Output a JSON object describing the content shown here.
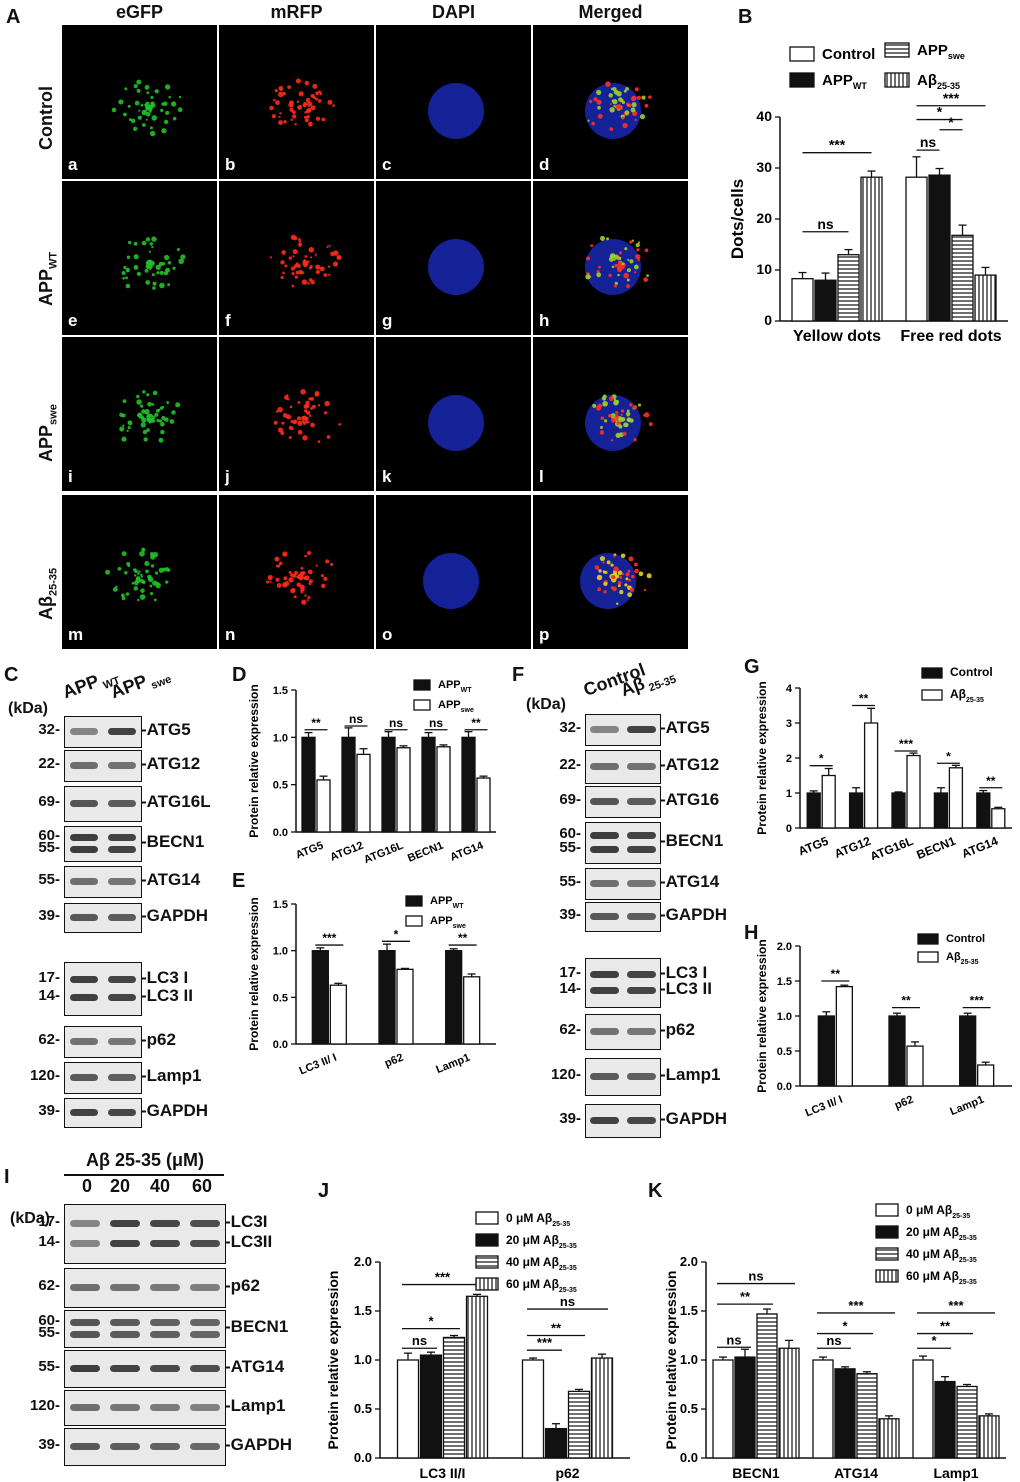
{
  "panel_letters": {
    "A": "A",
    "B": "B",
    "C": "C",
    "D": "D",
    "E": "E",
    "F": "F",
    "G": "G",
    "H": "H",
    "I": "I",
    "J": "J",
    "K": "K"
  },
  "micro": {
    "columns": [
      "eGFP",
      "mRFP",
      "DAPI",
      "Merged"
    ],
    "rows": [
      {
        "label": "Control",
        "sub": "",
        "cells": [
          "a",
          "b",
          "c",
          "d"
        ]
      },
      {
        "label": "APP",
        "sub": "WT",
        "cells": [
          "e",
          "f",
          "g",
          "h"
        ]
      },
      {
        "label": "APP",
        "sub": "swe",
        "cells": [
          "i",
          "j",
          "k",
          "l"
        ]
      },
      {
        "label": "Aβ",
        "sub": "25-35",
        "cells": [
          "m",
          "n",
          "o",
          "p"
        ]
      }
    ]
  },
  "blot_C": {
    "kda_label": "(kDa)",
    "lanes": [
      {
        "t": "APP",
        "s": "WT"
      },
      {
        "t": "APP",
        "s": "swe"
      }
    ],
    "rows": [
      {
        "kda": "32-",
        "label": "-ATG5"
      },
      {
        "kda": "22-",
        "label": "-ATG12"
      },
      {
        "kda": "69-",
        "label": "-ATG16L"
      },
      {
        "kda": "60-\n55-",
        "label": "-BECN1"
      },
      {
        "kda": "55-",
        "label": "-ATG14"
      },
      {
        "kda": "39-",
        "label": "-GAPDH"
      },
      {
        "kda": "17-\n14-",
        "label": "-LC3 I\n-LC3 II"
      },
      {
        "kda": "62-",
        "label": "-p62"
      },
      {
        "kda": "120-",
        "label": "-Lamp1"
      },
      {
        "kda": "39-",
        "label": "-GAPDH"
      }
    ]
  },
  "blot_F": {
    "kda_label": "(kDa)",
    "lanes": [
      {
        "t": "Control",
        "s": ""
      },
      {
        "t": "Aβ",
        "s": "25-35"
      }
    ],
    "rows": [
      {
        "kda": "32-",
        "label": "-ATG5"
      },
      {
        "kda": "22-",
        "label": "-ATG12"
      },
      {
        "kda": "69-",
        "label": "-ATG16"
      },
      {
        "kda": "60-\n55-",
        "label": "-BECN1"
      },
      {
        "kda": "55-",
        "label": "-ATG14"
      },
      {
        "kda": "39-",
        "label": "-GAPDH"
      },
      {
        "kda": "17-\n14-",
        "label": "-LC3 I\n-LC3 II"
      },
      {
        "kda": "62-",
        "label": "-p62"
      },
      {
        "kda": "120-",
        "label": "-Lamp1"
      },
      {
        "kda": "39-",
        "label": "-GAPDH"
      }
    ]
  },
  "blot_I": {
    "kda_label": "(kDa)",
    "title": "Aβ 25-35 (μM)",
    "lanes": [
      "0",
      "20",
      "40",
      "60"
    ],
    "rows": [
      {
        "kda": "17-\n14-",
        "label": "-LC3I\n-LC3II"
      },
      {
        "kda": "62-",
        "label": "-p62"
      },
      {
        "kda": "60-\n55-",
        "label": "-BECN1"
      },
      {
        "kda": "55-",
        "label": "-ATG14"
      },
      {
        "kda": "120-",
        "label": "-Lamp1"
      },
      {
        "kda": "39-",
        "label": "-GAPDH"
      }
    ]
  },
  "chart_data": [
    {
      "id": "B",
      "type": "bar",
      "ylabel": "Dots/cells",
      "ylim": [
        0,
        40
      ],
      "yticks": [
        0,
        10,
        20,
        30,
        40
      ],
      "categories": [
        "Yellow dots",
        "Free red dots"
      ],
      "series": [
        {
          "name": "Control",
          "values": [
            8.3,
            28.2
          ],
          "err": [
            1.2,
            4.0
          ],
          "fill": "white"
        },
        {
          "name": "APP",
          "sub": "WT",
          "values": [
            8.0,
            28.6
          ],
          "err": [
            1.4,
            1.3
          ],
          "fill": "black"
        },
        {
          "name": "APP",
          "sub": "swe",
          "values": [
            13.0,
            16.8
          ],
          "err": [
            1.0,
            2.0
          ],
          "fill": "hstripe"
        },
        {
          "name": "Aβ",
          "sub": "25-35",
          "values": [
            28.2,
            9.0
          ],
          "err": [
            1.2,
            1.5
          ],
          "fill": "vstripe"
        }
      ],
      "sig": [
        "***",
        "ns",
        "ns",
        "*",
        "*",
        "***"
      ]
    },
    {
      "id": "D",
      "type": "bar",
      "ylabel": "Protein relative expression",
      "ylim": [
        0,
        1.5
      ],
      "yticks": [
        0.0,
        0.5,
        1.0,
        1.5
      ],
      "categories": [
        "ATG5",
        "ATG12",
        "ATG16L",
        "BECN1",
        "ATG14"
      ],
      "series": [
        {
          "name": "APP",
          "sub": "WT",
          "values": [
            1.0,
            1.0,
            1.0,
            1.0,
            1.0
          ],
          "err": [
            0.05,
            0.1,
            0.06,
            0.05,
            0.06
          ],
          "fill": "black"
        },
        {
          "name": "APP",
          "sub": "swe",
          "values": [
            0.55,
            0.82,
            0.89,
            0.9,
            0.57
          ],
          "err": [
            0.04,
            0.06,
            0.02,
            0.02,
            0.02
          ],
          "fill": "white"
        }
      ],
      "sig": [
        "**",
        "ns",
        "ns",
        "ns",
        "**"
      ]
    },
    {
      "id": "E",
      "type": "bar",
      "ylabel": "Protein relative expression",
      "ylim": [
        0,
        1.5
      ],
      "yticks": [
        0.0,
        0.5,
        1.0,
        1.5
      ],
      "categories": [
        "LC3 II/ I",
        "p62",
        "Lamp1"
      ],
      "series": [
        {
          "name": "APP",
          "sub": "WT",
          "values": [
            1.0,
            1.0,
            1.0
          ],
          "err": [
            0.03,
            0.07,
            0.02
          ],
          "fill": "black"
        },
        {
          "name": "APP",
          "sub": "swe",
          "values": [
            0.63,
            0.8,
            0.72
          ],
          "err": [
            0.02,
            0.01,
            0.03
          ],
          "fill": "white"
        }
      ],
      "sig": [
        "***",
        "*",
        "**"
      ]
    },
    {
      "id": "G",
      "type": "bar",
      "ylabel": "Protein relative expression",
      "ylim": [
        0,
        4
      ],
      "yticks": [
        0,
        1,
        2,
        3,
        4
      ],
      "categories": [
        "ATG5",
        "ATG12",
        "ATG16L",
        "BECN1",
        "ATG14"
      ],
      "series": [
        {
          "name": "Control",
          "values": [
            1.0,
            1.0,
            1.0,
            1.0,
            1.0
          ],
          "err": [
            0.06,
            0.15,
            0.03,
            0.15,
            0.07
          ],
          "fill": "black"
        },
        {
          "name": "Aβ",
          "sub": "25-35",
          "values": [
            1.5,
            3.0,
            2.07,
            1.72,
            0.55
          ],
          "err": [
            0.2,
            0.42,
            0.07,
            0.07,
            0.04
          ],
          "fill": "white"
        }
      ],
      "sig": [
        "*",
        "**",
        "***",
        "*",
        "**"
      ]
    },
    {
      "id": "H",
      "type": "bar",
      "ylabel": "Protein relative expression",
      "ylim": [
        0,
        2.0
      ],
      "yticks": [
        0.0,
        0.5,
        1.0,
        1.5,
        2.0
      ],
      "categories": [
        "LC3 II/ I",
        "p62",
        "Lamp1"
      ],
      "series": [
        {
          "name": "Control",
          "values": [
            1.0,
            1.0,
            1.0
          ],
          "err": [
            0.06,
            0.04,
            0.04
          ],
          "fill": "black"
        },
        {
          "name": "Aβ",
          "sub": "25-35",
          "values": [
            1.42,
            0.57,
            0.3
          ],
          "err": [
            0.02,
            0.06,
            0.04
          ],
          "fill": "white"
        }
      ],
      "sig": [
        "**",
        "**",
        "***"
      ]
    },
    {
      "id": "J",
      "type": "bar",
      "ylabel": "Protein relative expression",
      "ylim": [
        0,
        2.0
      ],
      "yticks": [
        0.0,
        0.5,
        1.0,
        1.5,
        2.0
      ],
      "categories": [
        "LC3 II/I",
        "p62"
      ],
      "series": [
        {
          "name": "0 μM Aβ",
          "sub": "25-35",
          "values": [
            1.0,
            1.0
          ],
          "err": [
            0.07,
            0.02
          ],
          "fill": "white"
        },
        {
          "name": "20 μM Aβ",
          "sub": "25-35",
          "values": [
            1.05,
            0.3
          ],
          "err": [
            0.03,
            0.05
          ],
          "fill": "black"
        },
        {
          "name": "40 μM Aβ",
          "sub": "25-35",
          "values": [
            1.23,
            0.68
          ],
          "err": [
            0.02,
            0.02
          ],
          "fill": "hstripe"
        },
        {
          "name": "60 μM Aβ",
          "sub": "25-35",
          "values": [
            1.65,
            1.02
          ],
          "err": [
            0.02,
            0.04
          ],
          "fill": "vstripe"
        }
      ],
      "sig": [
        "ns",
        "*",
        "***",
        "***",
        "**",
        "ns"
      ]
    },
    {
      "id": "K",
      "type": "bar",
      "ylabel": "Protein relative expression",
      "ylim": [
        0,
        2.0
      ],
      "yticks": [
        0.0,
        0.5,
        1.0,
        1.5,
        2.0
      ],
      "categories": [
        "BECN1",
        "ATG14",
        "Lamp1"
      ],
      "series": [
        {
          "name": "0 μM Aβ",
          "sub": "25-35",
          "values": [
            1.0,
            1.0,
            1.0
          ],
          "err": [
            0.03,
            0.03,
            0.04
          ],
          "fill": "white"
        },
        {
          "name": "20 μM Aβ",
          "sub": "25-35",
          "values": [
            1.03,
            0.91,
            0.78
          ],
          "err": [
            0.08,
            0.02,
            0.05
          ],
          "fill": "black"
        },
        {
          "name": "40 μM Aβ",
          "sub": "25-35",
          "values": [
            1.47,
            0.86,
            0.73
          ],
          "err": [
            0.05,
            0.02,
            0.02
          ],
          "fill": "hstripe"
        },
        {
          "name": "60 μM Aβ",
          "sub": "25-35",
          "values": [
            1.12,
            0.4,
            0.43
          ],
          "err": [
            0.08,
            0.03,
            0.02
          ],
          "fill": "vstripe"
        }
      ],
      "sig": [
        "ns",
        "**",
        "ns",
        "ns",
        "*",
        "***",
        "*",
        "**",
        "***"
      ]
    }
  ]
}
